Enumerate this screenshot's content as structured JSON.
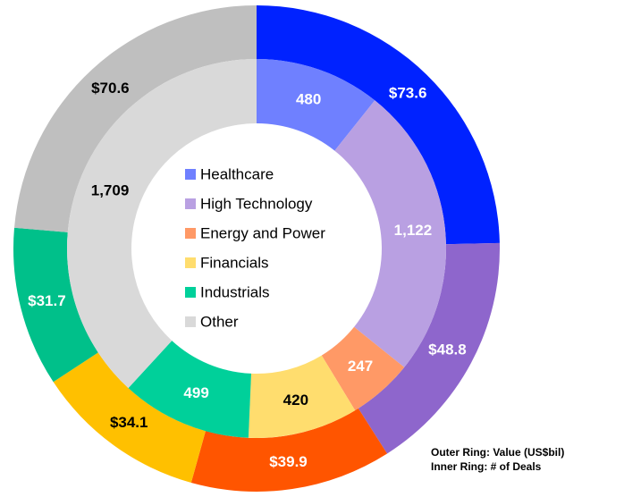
{
  "chart_data": {
    "type": "donut",
    "categories": [
      "Healthcare",
      "High Technology",
      "Energy and Power",
      "Financials",
      "Industrials",
      "Other"
    ],
    "series": [
      {
        "values": [
          73.6,
          48.8,
          39.9,
          34.1,
          31.7,
          70.6
        ],
        "value_labels": [
          "$73.6",
          "$48.8",
          "$39.9",
          "$34.1",
          "$31.7",
          "$70.6"
        ],
        "colors": [
          "#0022ff",
          "#8e66cc",
          "#ff5500",
          "#ffc000",
          "#00c08a",
          "#bfbfbf"
        ]
      },
      {
        "values": [
          480,
          1122,
          247,
          420,
          499,
          1709
        ],
        "value_labels": [
          "480",
          "1,122",
          "247",
          "420",
          "499",
          "1,709"
        ],
        "colors": [
          "#6f80ff",
          "#b9a0e2",
          "#ff9966",
          "#ffdd6e",
          "#00d09a",
          "#d9d9d9"
        ]
      }
    ],
    "legend": "center",
    "annotations": [
      "Outer Ring: Value (US$bil)",
      "Inner Ring: # of Deals"
    ]
  }
}
